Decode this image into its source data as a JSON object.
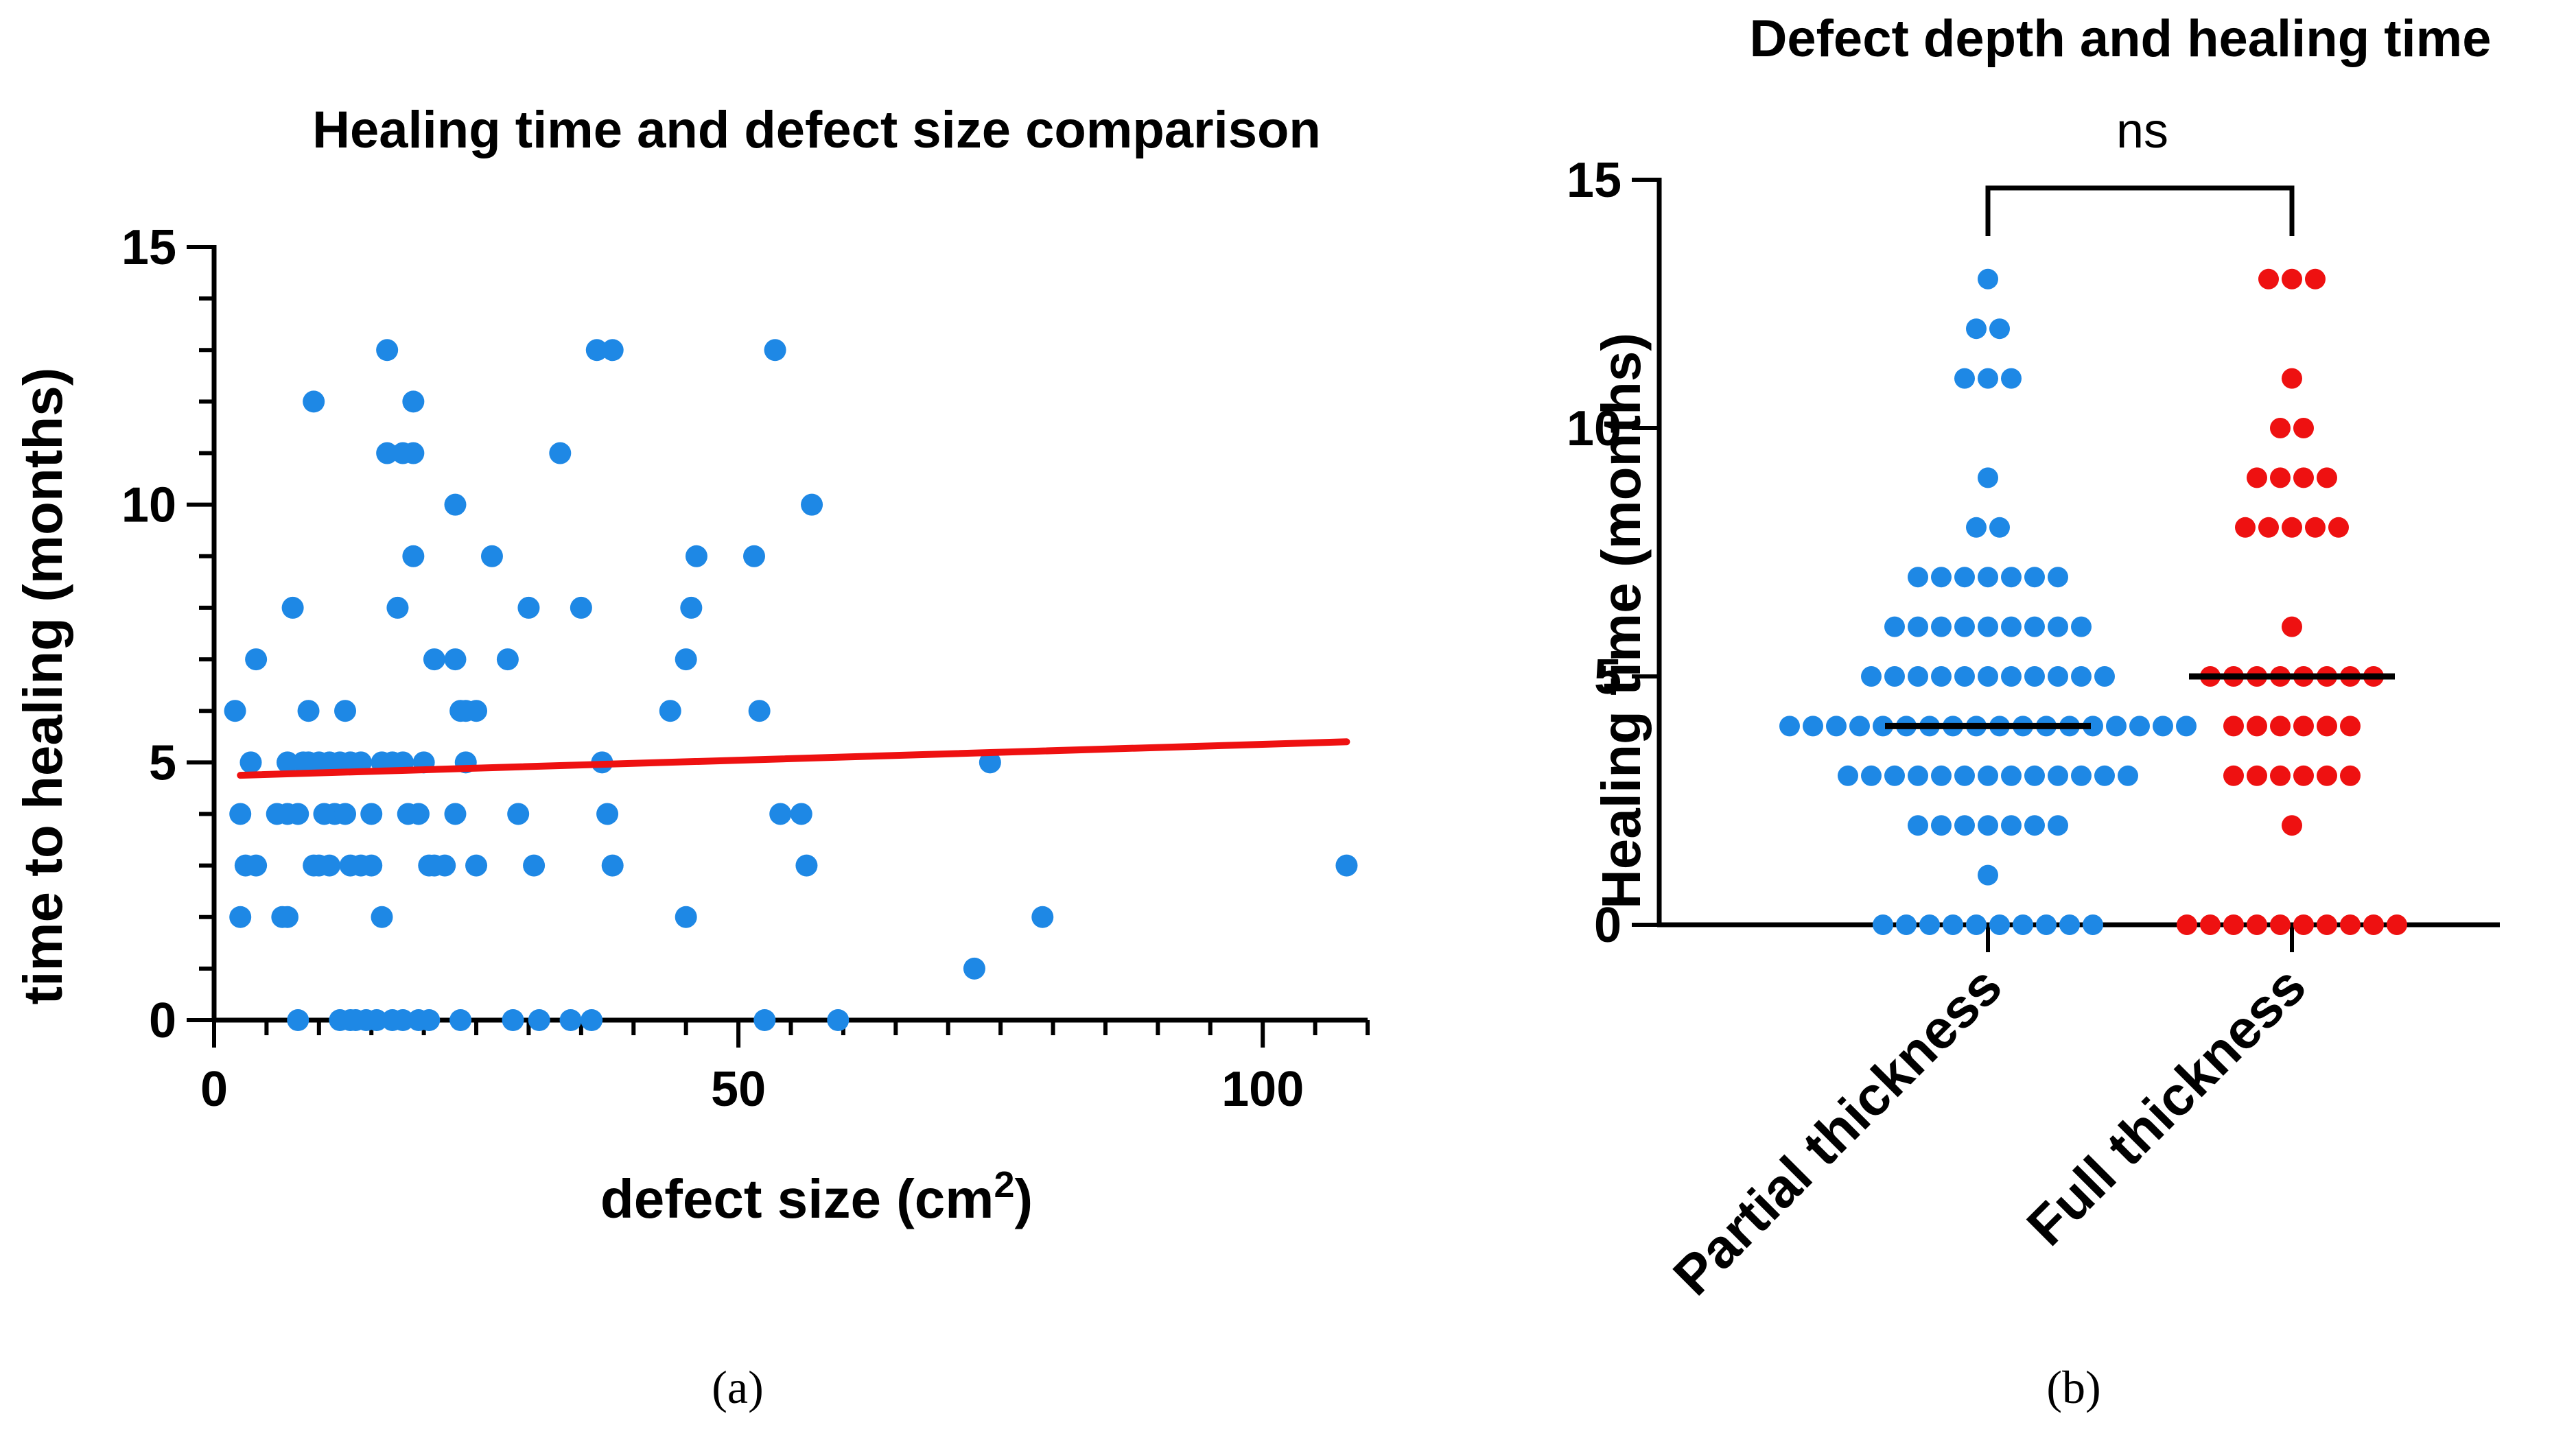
{
  "chart_data": [
    {
      "panel": "(a)",
      "type": "scatter",
      "title": "Healing time and defect size comparison",
      "xlabel_main": "defect size (cm",
      "xlabel_sup": "2",
      "xlabel_end": ")",
      "ylabel": "time to healing (months)",
      "xlim": [
        0,
        110
      ],
      "ylim": [
        0,
        15
      ],
      "xticks": [
        0,
        50,
        100
      ],
      "yticks": [
        0,
        5,
        10,
        15
      ],
      "point_color": "#1e88e5",
      "fit_color": "#ee1111",
      "fit_line": {
        "x": [
          2.5,
          108
        ],
        "y": [
          4.75,
          5.4
        ]
      },
      "points": [
        [
          2,
          6
        ],
        [
          2.5,
          4
        ],
        [
          2.5,
          2
        ],
        [
          3,
          3
        ],
        [
          3.5,
          5
        ],
        [
          4,
          3
        ],
        [
          4,
          7
        ],
        [
          6,
          4
        ],
        [
          6.5,
          2
        ],
        [
          7,
          2
        ],
        [
          7,
          5
        ],
        [
          7,
          4
        ],
        [
          7.5,
          8
        ],
        [
          8,
          4
        ],
        [
          8,
          0
        ],
        [
          8.5,
          5
        ],
        [
          9,
          6
        ],
        [
          9,
          5
        ],
        [
          9.5,
          12
        ],
        [
          9.5,
          3
        ],
        [
          10,
          5
        ],
        [
          10,
          3
        ],
        [
          10.5,
          4
        ],
        [
          11,
          3
        ],
        [
          11,
          5
        ],
        [
          11.5,
          4
        ],
        [
          12,
          0
        ],
        [
          12,
          5
        ],
        [
          12.5,
          6
        ],
        [
          12.5,
          4
        ],
        [
          13,
          0
        ],
        [
          13,
          3
        ],
        [
          13,
          5
        ],
        [
          13.5,
          0
        ],
        [
          14,
          3
        ],
        [
          14,
          5
        ],
        [
          14.5,
          0
        ],
        [
          15,
          4
        ],
        [
          15,
          3
        ],
        [
          15.5,
          0
        ],
        [
          16,
          5
        ],
        [
          16,
          2
        ],
        [
          16.5,
          11
        ],
        [
          16.5,
          13
        ],
        [
          17,
          5
        ],
        [
          17,
          0
        ],
        [
          17.5,
          8
        ],
        [
          18,
          11
        ],
        [
          18,
          5
        ],
        [
          18,
          0
        ],
        [
          18.5,
          4
        ],
        [
          19,
          9
        ],
        [
          19,
          11
        ],
        [
          19,
          12
        ],
        [
          19.5,
          4
        ],
        [
          19.5,
          0
        ],
        [
          20,
          5
        ],
        [
          20.5,
          3
        ],
        [
          20.5,
          0
        ],
        [
          21,
          7
        ],
        [
          21,
          3
        ],
        [
          22,
          3
        ],
        [
          23,
          4
        ],
        [
          23,
          10
        ],
        [
          23,
          7
        ],
        [
          23.5,
          6
        ],
        [
          23.5,
          0
        ],
        [
          24,
          6
        ],
        [
          24,
          5
        ],
        [
          25,
          3
        ],
        [
          25,
          6
        ],
        [
          26.5,
          9
        ],
        [
          28,
          7
        ],
        [
          28.5,
          0
        ],
        [
          29,
          4
        ],
        [
          30,
          8
        ],
        [
          30.5,
          3
        ],
        [
          31,
          0
        ],
        [
          33,
          11
        ],
        [
          34,
          0
        ],
        [
          35,
          8
        ],
        [
          36,
          0
        ],
        [
          36.5,
          13
        ],
        [
          37,
          5
        ],
        [
          37.5,
          4
        ],
        [
          38,
          13
        ],
        [
          38,
          3
        ],
        [
          43.5,
          6
        ],
        [
          45,
          7
        ],
        [
          45,
          2
        ],
        [
          45.5,
          8
        ],
        [
          46,
          9
        ],
        [
          51.5,
          9
        ],
        [
          52,
          6
        ],
        [
          52.5,
          0
        ],
        [
          53.5,
          13
        ],
        [
          54,
          4
        ],
        [
          56,
          4
        ],
        [
          56.5,
          3
        ],
        [
          57,
          10
        ],
        [
          59.5,
          0
        ],
        [
          72.5,
          1
        ],
        [
          74,
          5
        ],
        [
          79,
          2
        ],
        [
          108,
          3
        ]
      ]
    },
    {
      "panel": "(b)",
      "type": "scatter",
      "title": "Defect depth and healing time",
      "ylabel": "Healing time (months)",
      "ylim": [
        0,
        15
      ],
      "yticks": [
        0,
        5,
        10,
        15
      ],
      "categories": [
        "Partial thickness",
        "Full thickness"
      ],
      "significance": "ns",
      "series": [
        {
          "category": "Partial thickness",
          "color": "#1e88e5",
          "median": 4,
          "values": [
            13,
            12,
            12,
            11,
            11,
            11,
            9,
            8,
            8,
            7,
            7,
            7,
            7,
            7,
            7,
            7,
            6,
            6,
            6,
            6,
            6,
            6,
            6,
            6,
            6,
            5,
            5,
            5,
            5,
            5,
            5,
            5,
            5,
            5,
            5,
            5,
            4,
            4,
            4,
            4,
            4,
            4,
            4,
            4,
            4,
            4,
            4,
            4,
            4,
            4,
            4,
            4,
            4,
            4,
            3,
            3,
            3,
            3,
            3,
            3,
            3,
            3,
            3,
            3,
            3,
            3,
            3,
            2,
            2,
            2,
            2,
            2,
            2,
            2,
            1,
            0,
            0,
            0,
            0,
            0,
            0,
            0,
            0,
            0,
            0
          ]
        },
        {
          "category": "Full thickness",
          "color": "#ee1111",
          "median": 5,
          "values": [
            13,
            13,
            13,
            11,
            10,
            10,
            9,
            9,
            9,
            9,
            8,
            8,
            8,
            8,
            8,
            6,
            5,
            5,
            5,
            5,
            5,
            5,
            5,
            5,
            4,
            4,
            4,
            4,
            4,
            4,
            3,
            3,
            3,
            3,
            3,
            3,
            2,
            0,
            0,
            0,
            0,
            0,
            0,
            0,
            0,
            0,
            0
          ]
        }
      ]
    }
  ]
}
